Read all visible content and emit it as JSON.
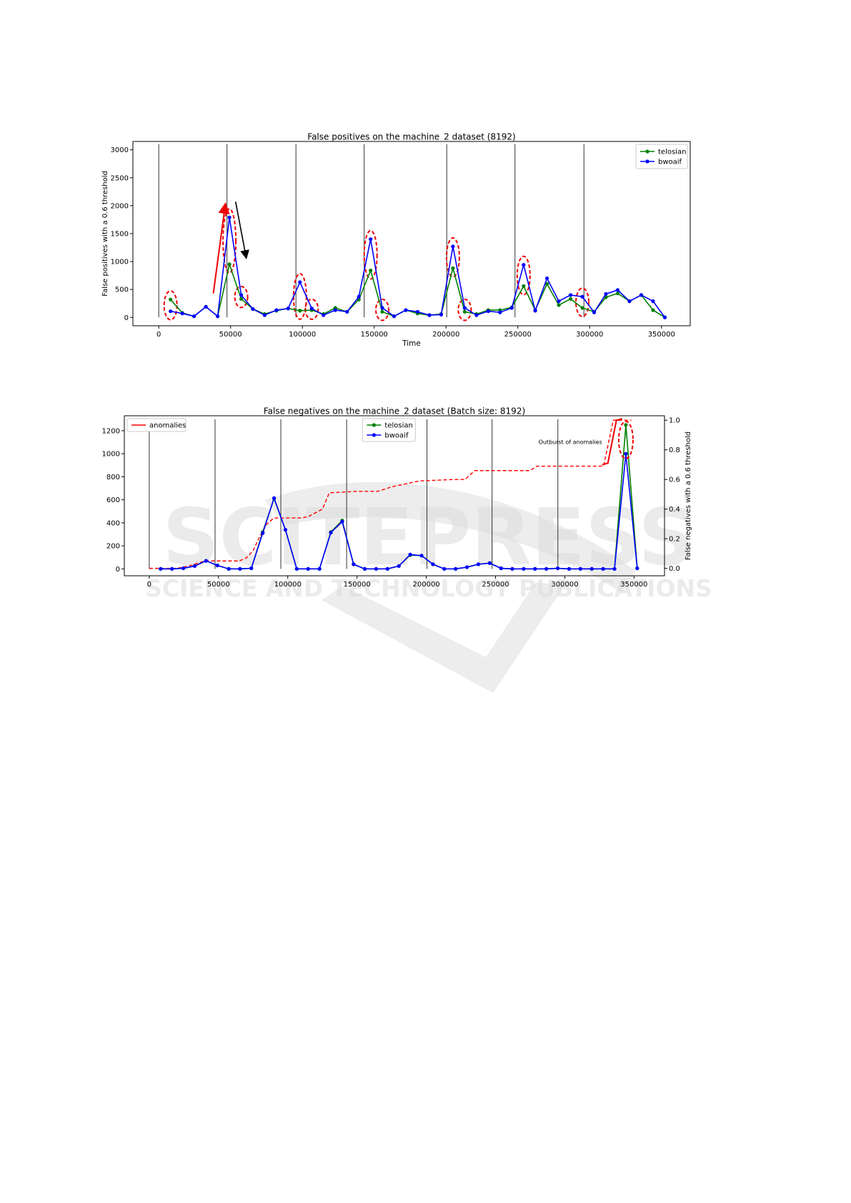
{
  "watermark": {
    "line1": "SCITEPRESS",
    "line2": "SCIENCE AND TECHNOLOGY PUBLICATIONS"
  },
  "chart_data": [
    {
      "type": "line",
      "title": "False positives on the machine_2 dataset (8192)",
      "xlabel": "Time",
      "ylabel": "False positives with a 0.6 threshold",
      "xlim": [
        -18000,
        370000
      ],
      "ylim": [
        -150,
        3150
      ],
      "x_ticks": [
        0,
        50000,
        100000,
        150000,
        200000,
        250000,
        300000,
        350000
      ],
      "x_tick_labels": [
        "0",
        "50000",
        "100000",
        "150000",
        "200000",
        "250000",
        "300000",
        "350000"
      ],
      "y_ticks": [
        0,
        500,
        1000,
        1500,
        2000,
        2500,
        3000
      ],
      "y_tick_labels": [
        "0",
        "500",
        "1000",
        "1500",
        "2000",
        "2500",
        "3000"
      ],
      "grid": false,
      "legend_position": "top-right",
      "vlines": [
        0,
        47500,
        95500,
        143000,
        200500,
        248000,
        296000
      ],
      "series": [
        {
          "name": "telosian",
          "color": "#008000",
          "x": [
            8200,
            16400,
            24600,
            32800,
            41000,
            49200,
            57400,
            65500,
            73700,
            81900,
            90100,
            98300,
            106500,
            114700,
            122900,
            131100,
            139300,
            147500,
            155600,
            163800,
            172000,
            180200,
            188400,
            196600,
            204800,
            213000,
            221200,
            229400,
            237600,
            245800,
            254000,
            262100,
            270300,
            278500,
            286700,
            294900,
            303100,
            311300,
            319500,
            327700,
            335900,
            344100,
            352300
          ],
          "y": [
            320,
            80,
            20,
            190,
            20,
            950,
            330,
            150,
            60,
            120,
            160,
            120,
            130,
            60,
            170,
            100,
            320,
            840,
            100,
            20,
            130,
            70,
            40,
            60,
            880,
            100,
            60,
            130,
            130,
            180,
            560,
            130,
            600,
            220,
            330,
            170,
            100,
            360,
            430,
            290,
            400,
            130,
            0
          ]
        },
        {
          "name": "bwoaif",
          "color": "#0000ff",
          "x": [
            8200,
            16400,
            24600,
            32800,
            41000,
            49200,
            57400,
            65500,
            73700,
            81900,
            90100,
            98300,
            106500,
            114700,
            122900,
            131100,
            139300,
            147500,
            155600,
            163800,
            172000,
            180200,
            188400,
            196600,
            204800,
            213000,
            221200,
            229400,
            237600,
            245800,
            254000,
            262100,
            270300,
            278500,
            286700,
            294900,
            303100,
            311300,
            319500,
            327700,
            335900,
            344100,
            352300
          ],
          "y": [
            110,
            70,
            20,
            190,
            20,
            1790,
            400,
            150,
            40,
            130,
            160,
            630,
            160,
            40,
            130,
            100,
            370,
            1400,
            170,
            20,
            130,
            100,
            40,
            50,
            1270,
            170,
            40,
            110,
            90,
            170,
            940,
            120,
            700,
            290,
            400,
            370,
            90,
            420,
            490,
            290,
            400,
            290,
            0
          ]
        }
      ],
      "annotation_circles_x": [
        8200,
        49200,
        57400,
        98300,
        106500,
        147500,
        155600,
        204800,
        213000,
        254000,
        294900
      ]
    },
    {
      "type": "line",
      "title": "False negatives on the machine_2 dataset (Batch size: 8192)",
      "xlabel": "",
      "ylabel_right": "False negatives with a 0.6 threshold",
      "xlim": [
        -18000,
        372000
      ],
      "ylim": [
        -60,
        1330
      ],
      "ylim_right": [
        -0.05,
        1.03
      ],
      "x_ticks": [
        0,
        50000,
        100000,
        150000,
        200000,
        250000,
        300000,
        350000
      ],
      "x_tick_labels": [
        "0",
        "50000",
        "100000",
        "150000",
        "200000",
        "250000",
        "300000",
        "350000"
      ],
      "y_ticks": [
        0,
        200,
        400,
        600,
        800,
        1000,
        1200
      ],
      "y_tick_labels": [
        "0",
        "200",
        "400",
        "600",
        "800",
        "1000",
        "1200"
      ],
      "y_ticks_right": [
        0.0,
        0.2,
        0.4,
        0.6,
        0.8,
        1.0
      ],
      "y_tick_labels_right": [
        "0.0",
        "0.2",
        "0.4",
        "0.6",
        "0.8",
        "1.0"
      ],
      "grid": false,
      "legend_positions": [
        "top-left",
        "top-center"
      ],
      "vlines": [
        0,
        47500,
        95000,
        142500,
        200500,
        247500,
        295000
      ],
      "annotation_text": "Outburst of anomalies",
      "series": [
        {
          "name": "telosian",
          "color": "#008000",
          "x": [
            8200,
            16400,
            24600,
            32800,
            41000,
            49200,
            57400,
            65500,
            73700,
            81900,
            90100,
            98300,
            106500,
            114700,
            122900,
            131100,
            139300,
            147500,
            155600,
            163800,
            172000,
            180200,
            188400,
            196600,
            204800,
            213000,
            221200,
            229400,
            237600,
            245800,
            254000,
            262100,
            270300,
            278500,
            286700,
            294900,
            303100,
            311300,
            319500,
            327700,
            335900,
            344100,
            352300
          ],
          "y": [
            0,
            0,
            5,
            25,
            70,
            30,
            0,
            0,
            5,
            320,
            610,
            340,
            0,
            0,
            0,
            320,
            420,
            40,
            0,
            0,
            0,
            25,
            120,
            115,
            40,
            0,
            0,
            15,
            40,
            50,
            5,
            0,
            0,
            0,
            0,
            5,
            0,
            0,
            0,
            0,
            0,
            1250,
            5
          ]
        },
        {
          "name": "bwoaif",
          "color": "#0000ff",
          "x": [
            8200,
            16400,
            24600,
            32800,
            41000,
            49200,
            57400,
            65500,
            73700,
            81900,
            90100,
            98300,
            106500,
            114700,
            122900,
            131100,
            139300,
            147500,
            155600,
            163800,
            172000,
            180200,
            188400,
            196600,
            204800,
            213000,
            221200,
            229400,
            237600,
            245800,
            254000,
            262100,
            270300,
            278500,
            286700,
            294900,
            303100,
            311300,
            319500,
            327700,
            335900,
            344100,
            352300
          ],
          "y": [
            0,
            0,
            5,
            25,
            70,
            30,
            0,
            0,
            5,
            310,
            615,
            340,
            0,
            0,
            0,
            315,
            410,
            40,
            0,
            0,
            0,
            25,
            125,
            115,
            40,
            0,
            0,
            15,
            40,
            50,
            5,
            0,
            0,
            0,
            0,
            5,
            0,
            0,
            0,
            0,
            0,
            1000,
            5
          ]
        },
        {
          "name": "anomalies",
          "color": "#ff0000",
          "axis": "right",
          "x": [
            0,
            20000,
            30000,
            40000,
            50000,
            65000,
            70000,
            75000,
            80000,
            85000,
            90000,
            110000,
            115000,
            125000,
            130000,
            150000,
            165000,
            175000,
            195000,
            220000,
            228000,
            235000,
            275000,
            280000,
            300000,
            328000,
            335000,
            348000
          ],
          "y": [
            0.0,
            0.0,
            0.02,
            0.05,
            0.05,
            0.05,
            0.07,
            0.12,
            0.22,
            0.3,
            0.34,
            0.34,
            0.35,
            0.4,
            0.51,
            0.52,
            0.52,
            0.55,
            0.59,
            0.6,
            0.6,
            0.66,
            0.66,
            0.69,
            0.69,
            0.69,
            1.0,
            1.0
          ]
        }
      ]
    }
  ]
}
